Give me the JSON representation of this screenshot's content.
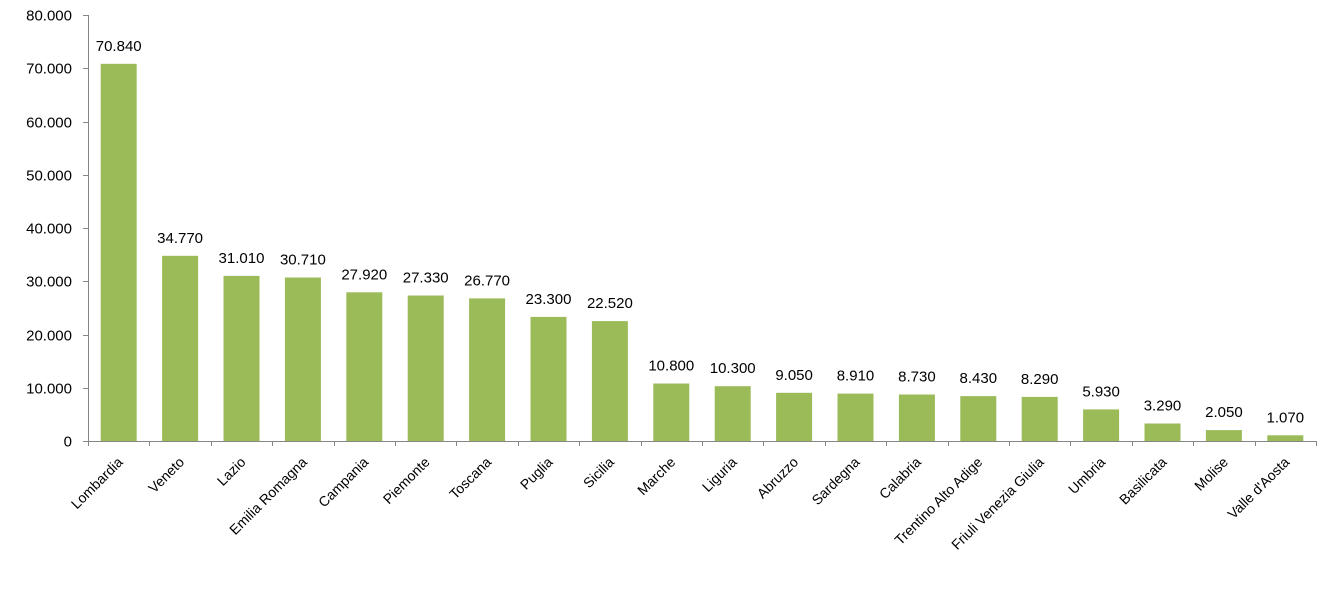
{
  "chart_data": {
    "type": "bar",
    "title": "",
    "xlabel": "",
    "ylabel": "",
    "ylim": [
      0,
      80000
    ],
    "yticks": [
      0,
      10000,
      20000,
      30000,
      40000,
      50000,
      60000,
      70000,
      80000
    ],
    "ytick_labels": [
      "0",
      "10.000",
      "20.000",
      "30.000",
      "40.000",
      "50.000",
      "60.000",
      "70.000",
      "80.000"
    ],
    "grid": false,
    "bar_color": "#9BBB59",
    "categories": [
      "Lombardia",
      "Veneto",
      "Lazio",
      "Emilia Romagna",
      "Campania",
      "Piemonte",
      "Toscana",
      "Puglia",
      "Sicilia",
      "Marche",
      "Liguria",
      "Abruzzo",
      "Sardegna",
      "Calabria",
      "Trentino Alto Adige",
      "Friuli Venezia Giulia",
      "Umbria",
      "Basilicata",
      "Molise",
      "Valle d'Aosta"
    ],
    "values": [
      70840,
      34770,
      31010,
      30710,
      27920,
      27330,
      26770,
      23300,
      22520,
      10800,
      10300,
      9050,
      8910,
      8730,
      8430,
      8290,
      5930,
      3290,
      2050,
      1070
    ],
    "value_labels": [
      "70.840",
      "34.770",
      "31.010",
      "30.710",
      "27.920",
      "27.330",
      "26.770",
      "23.300",
      "22.520",
      "10.800",
      "10.300",
      "9.050",
      "8.910",
      "8.730",
      "8.430",
      "8.290",
      "5.930",
      "3.290",
      "2.050",
      "1.070"
    ]
  }
}
